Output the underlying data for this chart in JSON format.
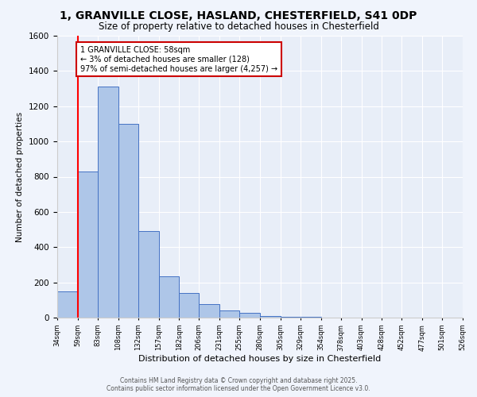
{
  "title1": "1, GRANVILLE CLOSE, HASLAND, CHESTERFIELD, S41 0DP",
  "title2": "Size of property relative to detached houses in Chesterfield",
  "xlabel": "Distribution of detached houses by size in Chesterfield",
  "ylabel": "Number of detached properties",
  "bar_values": [
    150,
    830,
    1310,
    1100,
    490,
    235,
    140,
    75,
    40,
    25,
    10,
    5,
    3,
    2,
    1,
    1,
    0,
    0,
    0,
    0
  ],
  "bin_edges": [
    34,
    59,
    83,
    108,
    132,
    157,
    182,
    206,
    231,
    255,
    280,
    305,
    329,
    354,
    378,
    403,
    428,
    452,
    477,
    501,
    526
  ],
  "tick_labels": [
    "34sqm",
    "59sqm",
    "83sqm",
    "108sqm",
    "132sqm",
    "157sqm",
    "182sqm",
    "206sqm",
    "231sqm",
    "255sqm",
    "280sqm",
    "305sqm",
    "329sqm",
    "354sqm",
    "378sqm",
    "403sqm",
    "428sqm",
    "452sqm",
    "477sqm",
    "501sqm",
    "526sqm"
  ],
  "bar_color": "#aec6e8",
  "bar_edge_color": "#4472c4",
  "red_line_x": 59,
  "annotation_text": "1 GRANVILLE CLOSE: 58sqm\n← 3% of detached houses are smaller (128)\n97% of semi-detached houses are larger (4,257) →",
  "annotation_box_color": "#ffffff",
  "annotation_border_color": "#cc0000",
  "ylim": [
    0,
    1600
  ],
  "yticks": [
    0,
    200,
    400,
    600,
    800,
    1000,
    1200,
    1400,
    1600
  ],
  "background_color": "#e8eef8",
  "fig_background_color": "#f0f4fc",
  "footer1": "Contains HM Land Registry data © Crown copyright and database right 2025.",
  "footer2": "Contains public sector information licensed under the Open Government Licence v3.0.",
  "title_fontsize": 10,
  "subtitle_fontsize": 8.5,
  "ylabel_fontsize": 7.5,
  "xlabel_fontsize": 8,
  "ytick_fontsize": 7.5,
  "xtick_fontsize": 6,
  "annotation_fontsize": 7,
  "footer_fontsize": 5.5
}
